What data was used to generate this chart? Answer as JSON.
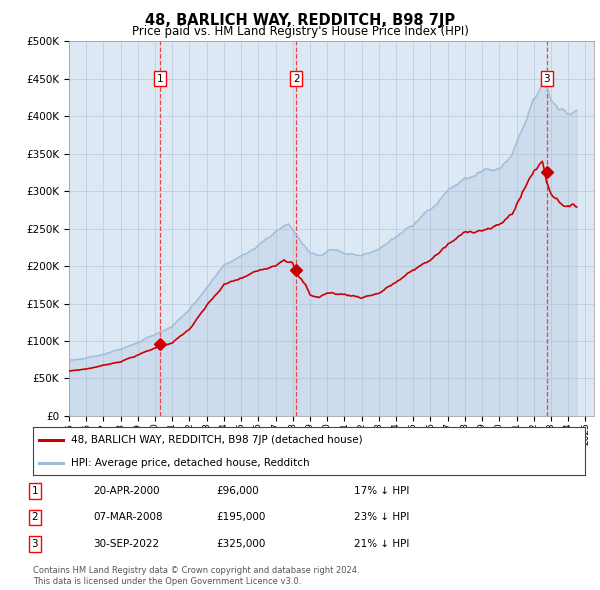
{
  "title": "48, BARLICH WAY, REDDITCH, B98 7JP",
  "subtitle": "Price paid vs. HM Land Registry's House Price Index (HPI)",
  "legend_line1": "48, BARLICH WAY, REDDITCH, B98 7JP (detached house)",
  "legend_line2": "HPI: Average price, detached house, Redditch",
  "footer1": "Contains HM Land Registry data © Crown copyright and database right 2024.",
  "footer2": "This data is licensed under the Open Government Licence v3.0.",
  "sales": [
    {
      "num": 1,
      "date": "20-APR-2000",
      "price": 96000,
      "hpi_diff": "17% ↓ HPI",
      "x": 2000.3
    },
    {
      "num": 2,
      "date": "07-MAR-2008",
      "price": 195000,
      "hpi_diff": "23% ↓ HPI",
      "x": 2008.2
    },
    {
      "num": 3,
      "date": "30-SEP-2022",
      "price": 325000,
      "hpi_diff": "21% ↓ HPI",
      "x": 2022.75
    }
  ],
  "hpi_color": "#a0bcd8",
  "price_color": "#cc0000",
  "vline_color": "#ee3333",
  "bg_color": "#dce8f4",
  "grid_color": "#b8c8dc",
  "ylim": [
    0,
    500000
  ],
  "yticks": [
    0,
    50000,
    100000,
    150000,
    200000,
    250000,
    300000,
    350000,
    400000,
    450000,
    500000
  ],
  "xlim_start": 1995.0,
  "xlim_end": 2025.5
}
